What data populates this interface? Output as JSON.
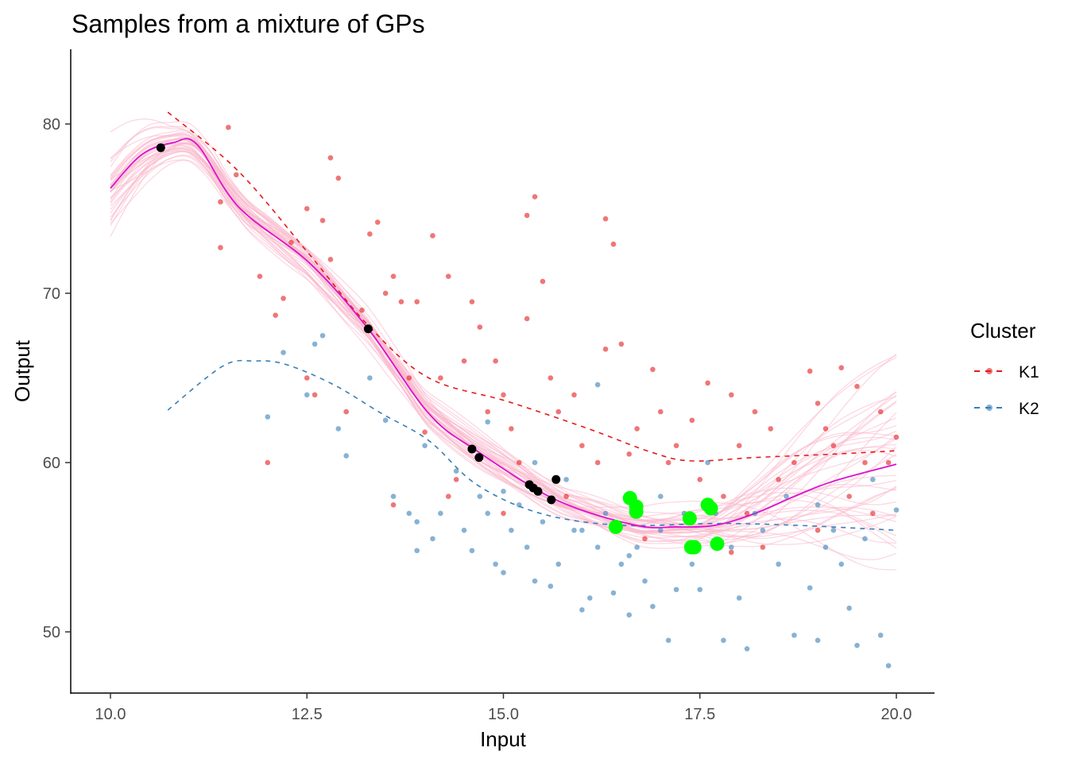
{
  "chart_data": {
    "type": "scatter",
    "title": "Samples from a mixture of GPs",
    "xlabel": "Input",
    "ylabel": "Output",
    "xlim": [
      9.5,
      20.95
    ],
    "ylim": [
      46.4,
      84.5
    ],
    "xticks": [
      10,
      12.5,
      15,
      17.5,
      20
    ],
    "xtick_labels": [
      "10.0",
      "12.5",
      "15.0",
      "17.5",
      "20.0"
    ],
    "yticks": [
      50,
      60,
      70,
      80
    ],
    "ytick_labels": [
      "50",
      "60",
      "70",
      "80"
    ],
    "grid": false,
    "legend": {
      "title": "Cluster",
      "placement": "right",
      "entries": [
        {
          "label": "K1",
          "color": "#e41a1c"
        },
        {
          "label": "K2",
          "color": "#377eb8"
        }
      ]
    },
    "colors": {
      "k1": "#e41a1c",
      "k2": "#377eb8",
      "mean": "#dd11cc",
      "samples": "#f9b8cc",
      "black": "#000000",
      "green": "#00ff00"
    },
    "posterior_samples_count": 40,
    "mean_curve": [
      [
        10,
        76.2
      ],
      [
        10.4,
        78.2
      ],
      [
        10.8,
        78.9
      ],
      [
        11.1,
        78.8
      ],
      [
        11.63,
        75.1
      ],
      [
        12.53,
        71.8
      ],
      [
        13.28,
        67.9
      ],
      [
        14.05,
        62.9
      ],
      [
        14.66,
        60.7
      ],
      [
        15.67,
        57.8
      ],
      [
        16.68,
        56.3
      ],
      [
        17.19,
        56.2
      ],
      [
        17.7,
        56.3
      ],
      [
        18.2,
        57.0
      ],
      [
        18.7,
        58.0
      ],
      [
        19.2,
        58.9
      ],
      [
        20,
        59.9
      ]
    ],
    "k1_mean": [
      [
        10.73,
        80.7
      ],
      [
        11.63,
        77.2
      ],
      [
        12.53,
        72.3
      ],
      [
        13.28,
        68.1
      ],
      [
        14.05,
        65.0
      ],
      [
        15.06,
        63.6
      ],
      [
        16.08,
        62.0
      ],
      [
        16.89,
        60.6
      ],
      [
        17.39,
        60.1
      ],
      [
        18.2,
        60.3
      ],
      [
        19.21,
        60.5
      ],
      [
        20,
        60.7
      ]
    ],
    "k2_mean": [
      [
        10.73,
        63.1
      ],
      [
        11.43,
        65.7
      ],
      [
        11.83,
        66.0
      ],
      [
        12.23,
        65.8
      ],
      [
        12.84,
        64.6
      ],
      [
        13.45,
        62.9
      ],
      [
        14.05,
        61.3
      ],
      [
        14.66,
        58.7
      ],
      [
        15.47,
        57.0
      ],
      [
        16.48,
        56.3
      ],
      [
        17.7,
        56.4
      ],
      [
        18.7,
        56.3
      ],
      [
        20,
        56.0
      ]
    ],
    "black_points": [
      [
        10.64,
        78.6
      ],
      [
        13.28,
        67.9
      ],
      [
        14.6,
        60.8
      ],
      [
        14.69,
        60.3
      ],
      [
        15.33,
        58.7
      ],
      [
        15.38,
        58.5
      ],
      [
        15.44,
        58.3
      ],
      [
        15.61,
        57.8
      ],
      [
        15.67,
        59.0
      ]
    ],
    "green_points": [
      [
        16.43,
        56.2
      ],
      [
        16.61,
        57.9
      ],
      [
        16.69,
        57.4
      ],
      [
        16.69,
        57.1
      ],
      [
        17.37,
        56.7
      ],
      [
        17.39,
        55.0
      ],
      [
        17.43,
        55.0
      ],
      [
        17.6,
        57.5
      ],
      [
        17.64,
        57.3
      ],
      [
        17.72,
        55.2
      ]
    ],
    "k1_points": [
      [
        11.4,
        72.7
      ],
      [
        11.5,
        79.8
      ],
      [
        11.6,
        77
      ],
      [
        11.4,
        75.4
      ],
      [
        12.1,
        68.7
      ],
      [
        12.2,
        69.7
      ],
      [
        12.3,
        73
      ],
      [
        12.5,
        75
      ],
      [
        12.6,
        64
      ],
      [
        12.7,
        74.3
      ],
      [
        12.8,
        72
      ],
      [
        12.9,
        76.8
      ],
      [
        12.8,
        78
      ],
      [
        13.2,
        69
      ],
      [
        13.3,
        73.5
      ],
      [
        13.4,
        74.2
      ],
      [
        13.5,
        70
      ],
      [
        13.6,
        71
      ],
      [
        13.7,
        69.5
      ],
      [
        13.8,
        65
      ],
      [
        13.9,
        69.5
      ],
      [
        14.0,
        61.8
      ],
      [
        14.1,
        73.4
      ],
      [
        14.2,
        65
      ],
      [
        14.3,
        71
      ],
      [
        14.4,
        59
      ],
      [
        14.5,
        66
      ],
      [
        14.6,
        69.5
      ],
      [
        14.7,
        68
      ],
      [
        14.8,
        63
      ],
      [
        15.0,
        64
      ],
      [
        15.1,
        62
      ],
      [
        15.3,
        74.6
      ],
      [
        15.4,
        75.7
      ],
      [
        15.5,
        70.7
      ],
      [
        15.3,
        68.5
      ],
      [
        15.6,
        65
      ],
      [
        15.7,
        63
      ],
      [
        15.9,
        64
      ],
      [
        16.0,
        61
      ],
      [
        16.2,
        60
      ],
      [
        16.3,
        74.4
      ],
      [
        16.4,
        72.9
      ],
      [
        16.5,
        67
      ],
      [
        16.6,
        60.5
      ],
      [
        16.7,
        62
      ],
      [
        16.9,
        65.5
      ],
      [
        17.0,
        63
      ],
      [
        17.2,
        61
      ],
      [
        17.4,
        62.5
      ],
      [
        17.5,
        59
      ],
      [
        17.6,
        64.7
      ],
      [
        17.8,
        58
      ],
      [
        17.9,
        64
      ],
      [
        18.0,
        61
      ],
      [
        18.1,
        57
      ],
      [
        18.2,
        63
      ],
      [
        18.4,
        62
      ],
      [
        18.5,
        59
      ],
      [
        18.7,
        60
      ],
      [
        18.9,
        65.4
      ],
      [
        19.0,
        63.5
      ],
      [
        19.1,
        62
      ],
      [
        19.2,
        61
      ],
      [
        19.3,
        65.6
      ],
      [
        19.4,
        58
      ],
      [
        19.5,
        64.5
      ],
      [
        19.6,
        60
      ],
      [
        19.7,
        57
      ],
      [
        19.8,
        63
      ],
      [
        19.9,
        60
      ],
      [
        20.0,
        61.5
      ],
      [
        12.0,
        60
      ],
      [
        13.0,
        63
      ],
      [
        13.6,
        57.5
      ],
      [
        14.3,
        58
      ],
      [
        15.0,
        57
      ],
      [
        15.8,
        58
      ],
      [
        16.8,
        55.5
      ],
      [
        17.9,
        54.7
      ],
      [
        18.3,
        55
      ],
      [
        19.0,
        56
      ],
      [
        12.5,
        65
      ],
      [
        11.9,
        71
      ],
      [
        16.3,
        66.7
      ],
      [
        14.9,
        66
      ],
      [
        15.2,
        60
      ],
      [
        17.1,
        60
      ]
    ],
    "k2_points": [
      [
        12.0,
        62.7
      ],
      [
        12.2,
        66.5
      ],
      [
        12.5,
        64
      ],
      [
        12.6,
        67
      ],
      [
        12.7,
        67.5
      ],
      [
        12.9,
        62
      ],
      [
        13.0,
        60.4
      ],
      [
        13.3,
        65
      ],
      [
        13.5,
        62.5
      ],
      [
        13.6,
        58
      ],
      [
        13.8,
        57
      ],
      [
        13.9,
        56.5
      ],
      [
        14.0,
        61
      ],
      [
        14.1,
        55.5
      ],
      [
        14.2,
        57
      ],
      [
        14.4,
        59.5
      ],
      [
        14.5,
        56
      ],
      [
        14.6,
        54.8
      ],
      [
        14.7,
        58
      ],
      [
        14.8,
        57
      ],
      [
        14.9,
        54
      ],
      [
        15.0,
        53.5
      ],
      [
        15.1,
        56
      ],
      [
        15.2,
        57.5
      ],
      [
        15.3,
        55
      ],
      [
        15.4,
        53
      ],
      [
        15.5,
        56.5
      ],
      [
        15.6,
        52.7
      ],
      [
        15.7,
        54
      ],
      [
        15.8,
        59
      ],
      [
        15.9,
        56
      ],
      [
        16.0,
        51.3
      ],
      [
        16.1,
        52
      ],
      [
        16.2,
        55
      ],
      [
        16.3,
        57
      ],
      [
        16.4,
        52.3
      ],
      [
        16.5,
        54
      ],
      [
        16.6,
        51
      ],
      [
        16.7,
        55
      ],
      [
        16.8,
        53
      ],
      [
        16.9,
        51.5
      ],
      [
        17.0,
        58
      ],
      [
        17.1,
        49.5
      ],
      [
        17.2,
        52.5
      ],
      [
        17.3,
        57
      ],
      [
        17.4,
        54
      ],
      [
        17.5,
        52.5
      ],
      [
        17.6,
        60
      ],
      [
        17.7,
        57
      ],
      [
        17.8,
        49.5
      ],
      [
        17.9,
        55
      ],
      [
        18.0,
        52
      ],
      [
        18.1,
        49
      ],
      [
        18.3,
        56
      ],
      [
        18.5,
        54
      ],
      [
        18.6,
        58
      ],
      [
        18.7,
        49.8
      ],
      [
        18.9,
        52.6
      ],
      [
        19.0,
        49.5
      ],
      [
        19.1,
        55
      ],
      [
        19.2,
        56
      ],
      [
        19.3,
        54
      ],
      [
        19.4,
        51.4
      ],
      [
        19.5,
        49.2
      ],
      [
        19.6,
        55.5
      ],
      [
        19.7,
        59
      ],
      [
        19.8,
        49.8
      ],
      [
        19.9,
        48
      ],
      [
        20.0,
        57.2
      ],
      [
        16.2,
        64.6
      ],
      [
        14.8,
        62.4
      ],
      [
        15.4,
        60
      ],
      [
        15.0,
        58.3
      ],
      [
        16.0,
        56
      ],
      [
        17.0,
        56
      ],
      [
        18.2,
        57
      ],
      [
        19.0,
        57.5
      ],
      [
        13.9,
        54.8
      ],
      [
        16.6,
        54.5
      ]
    ]
  }
}
